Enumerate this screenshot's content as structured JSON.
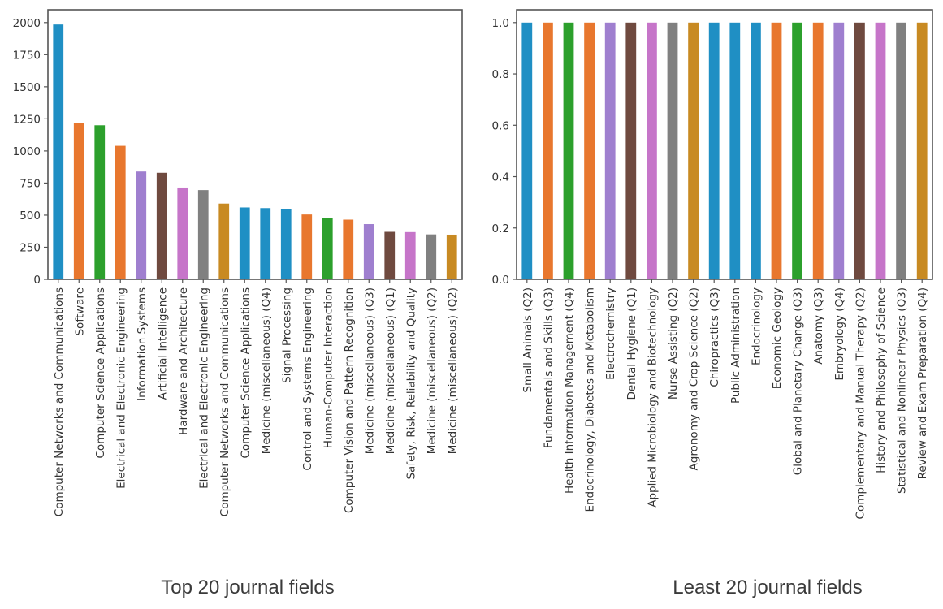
{
  "captions": {
    "left": "Top 20 journal fields",
    "right": "Least 20 journal fields"
  },
  "colors": [
    "#1f77b4",
    "#e8772e",
    "#2ca02c",
    "#e8772e",
    "#9f7fcf",
    "#6f4a3f",
    "#c675c9",
    "#808080",
    "#c88a22",
    "#1f8fc4"
  ],
  "chart_data": [
    {
      "type": "bar",
      "title": "",
      "xlabel": "",
      "ylabel": "",
      "ylim": [
        0,
        2100
      ],
      "yticks": [
        0,
        250,
        500,
        750,
        1000,
        1250,
        1500,
        1750,
        2000
      ],
      "ytick_labels": [
        "0",
        "250",
        "500",
        "750",
        "1000",
        "1250",
        "1500",
        "1750",
        "2000"
      ],
      "grid": false,
      "bar_colors": [
        "#1f8fc4",
        "#e8772e",
        "#2ca02c",
        "#e8772e",
        "#9f7fcf",
        "#6f4a3f",
        "#c675c9",
        "#808080",
        "#c88a22",
        "#1f8fc4",
        "#1f8fc4",
        "#1f8fc4",
        "#e8772e",
        "#2ca02c",
        "#e8772e",
        "#9f7fcf",
        "#6f4a3f",
        "#c675c9",
        "#808080",
        "#c88a22"
      ],
      "categories": [
        "Computer Networks and Communications",
        "Software",
        "Computer Science Applications",
        "Electrical and Electronic Engineering",
        "Information Systems",
        "Artificial Intelligence",
        "Hardware and Architecture",
        "Electrical and Electronic Engineering",
        "Computer Networks and Communications",
        "Computer Science Applications",
        "Medicine (miscellaneous) (Q4)",
        "Signal Processing",
        "Control and Systems Engineering",
        "Human-Computer Interaction",
        "Computer Vision and Pattern Recognition",
        "Medicine (miscellaneous) (Q3)",
        "Medicine (miscellaneous) (Q1)",
        "Safety, Risk, Reliability and Quality",
        "Medicine (miscellaneous) (Q2)",
        "Medicine (miscellaneous) (Q2)"
      ],
      "values": [
        1985,
        1220,
        1200,
        1040,
        840,
        830,
        715,
        695,
        590,
        560,
        555,
        550,
        505,
        475,
        465,
        430,
        370,
        368,
        350,
        348
      ]
    },
    {
      "type": "bar",
      "title": "",
      "xlabel": "",
      "ylabel": "",
      "ylim": [
        0,
        1.05
      ],
      "yticks": [
        0,
        0.2,
        0.4,
        0.6,
        0.8,
        1.0
      ],
      "ytick_labels": [
        "0.0",
        "0.2",
        "0.4",
        "0.6",
        "0.8",
        "1.0"
      ],
      "grid": false,
      "bar_colors": [
        "#1f8fc4",
        "#e8772e",
        "#2ca02c",
        "#e8772e",
        "#9f7fcf",
        "#6f4a3f",
        "#c675c9",
        "#808080",
        "#c88a22",
        "#1f8fc4",
        "#1f8fc4",
        "#1f8fc4",
        "#e8772e",
        "#2ca02c",
        "#e8772e",
        "#9f7fcf",
        "#6f4a3f",
        "#c675c9",
        "#808080",
        "#c88a22"
      ],
      "categories": [
        "Small Animals (Q2)",
        "Fundamentals and Skills (Q3)",
        "Health Information Management (Q4)",
        "Endocrinology, Diabetes and Metabolism",
        "Electrochemistry",
        "Dental Hygiene (Q1)",
        "Applied Microbiology and Biotechnology",
        "Nurse Assisting (Q2)",
        "Agronomy and Crop Science (Q2)",
        "Chiropractics (Q3)",
        "Public Administration",
        "Endocrinology",
        "Economic Geology",
        "Global and Planetary Change (Q3)",
        "Anatomy (Q3)",
        "Embryology (Q4)",
        "Complementary and Manual Therapy (Q2)",
        "History and Philosophy of Science",
        "Statistical and Nonlinear Physics (Q3)",
        "Review and Exam Preparation (Q4)"
      ],
      "values": [
        1,
        1,
        1,
        1,
        1,
        1,
        1,
        1,
        1,
        1,
        1,
        1,
        1,
        1,
        1,
        1,
        1,
        1,
        1,
        1
      ]
    }
  ]
}
